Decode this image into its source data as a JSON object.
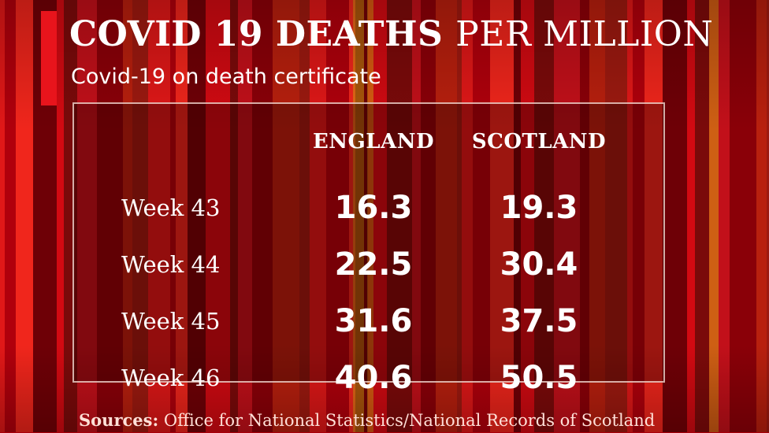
{
  "header": {
    "title_bold": "COVID 19 DEATHS",
    "title_light": "PER MILLION",
    "subtitle": "Covid-19 on death certificate"
  },
  "footer": {
    "sources_label": "Sources:",
    "sources_text": "Office for National Statistics/National Records of Scotland"
  },
  "colors": {
    "accent": "#e8141c",
    "background": "#a8000a",
    "text": "#ffffff"
  },
  "chart_data": {
    "type": "table",
    "title": "COVID 19 DEATHS PER MILLION",
    "subtitle": "Covid-19 on death certificate",
    "columns": [
      "ENGLAND",
      "SCOTLAND"
    ],
    "rows": [
      {
        "label": "Week 43",
        "values": [
          "16.3",
          "19.3"
        ]
      },
      {
        "label": "Week 44",
        "values": [
          "22.5",
          "30.4"
        ]
      },
      {
        "label": "Week 45",
        "values": [
          "31.6",
          "37.5"
        ]
      },
      {
        "label": "Week 46",
        "values": [
          "40.6",
          "50.5"
        ]
      }
    ]
  }
}
